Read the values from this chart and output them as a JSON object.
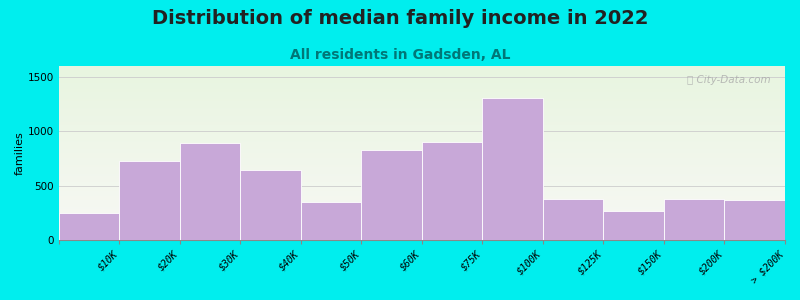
{
  "title": "Distribution of median family income in 2022",
  "subtitle": "All residents in Gadsden, AL",
  "ylabel": "families",
  "categories": [
    "$10K",
    "$20K",
    "$30K",
    "$40K",
    "$50K",
    "$60K",
    "$75K",
    "$100K",
    "$125K",
    "$150K",
    "$200K",
    "> $200K"
  ],
  "values": [
    250,
    730,
    890,
    645,
    350,
    830,
    900,
    1310,
    380,
    265,
    380,
    370
  ],
  "bar_color": "#c8a8d8",
  "bar_edgecolor": "#ffffff",
  "background_outer": "#00eeee",
  "background_plot_top": "#e8f5e0",
  "background_plot_bottom": "#f8f8f5",
  "title_fontsize": 14,
  "title_color": "#222222",
  "subtitle_fontsize": 10,
  "subtitle_color": "#007777",
  "ylabel_fontsize": 8,
  "tick_label_fontsize": 7,
  "ytick_labels": [
    0,
    500,
    1000,
    1500
  ],
  "ylim": [
    0,
    1600
  ],
  "watermark": "ⓘ City-Data.com"
}
